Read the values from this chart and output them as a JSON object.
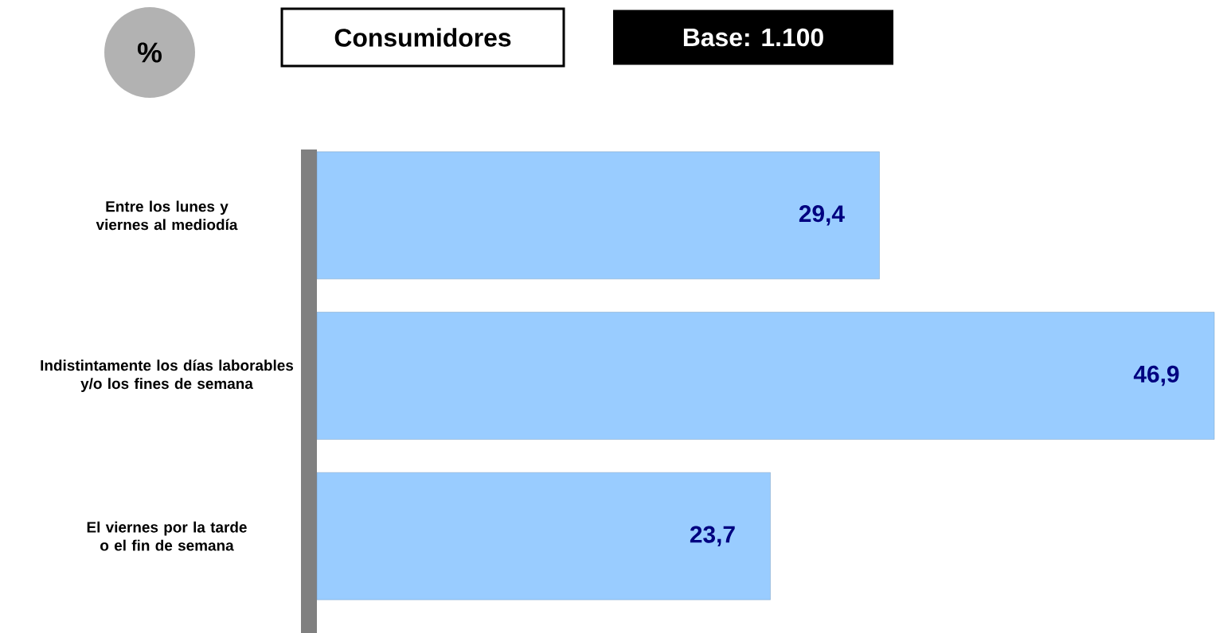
{
  "chart_data": {
    "type": "bar",
    "orientation": "horizontal",
    "categories": [
      "Entre los lunes y viernes al mediodía",
      "Indistintamente los días laborables y/o los fines de semana",
      "El viernes por la tarde o el fin de semana"
    ],
    "values": [
      29.4,
      46.9,
      23.7
    ],
    "color": "#99ccff",
    "value_labels": [
      "29,4",
      "46,9",
      "23,7"
    ],
    "annotations": [
      "%",
      "Consumidores",
      "Base: 1.100"
    ]
  }
}
